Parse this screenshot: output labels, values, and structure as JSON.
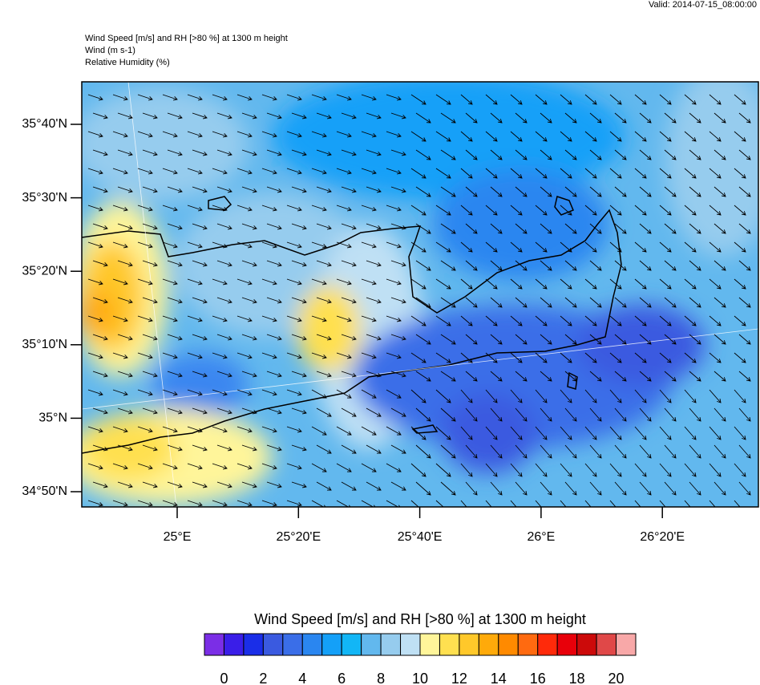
{
  "valid": "Valid: 2014-07-15_08:00:00",
  "header": [
    "Wind Speed [m/s] and RH [>80 %] at 1300 m height",
    "Wind   (m s-1)",
    "Relative Humidity   (%)"
  ],
  "lat_labels": [
    "35°40'N",
    "35°30'N",
    "35°20'N",
    "35°10'N",
    "35°N",
    "34°50'N"
  ],
  "lon_labels": [
    "25°E",
    "25°20'E",
    "25°40'E",
    "26°E",
    "26°20'E"
  ],
  "colorbar": {
    "title": "Wind Speed [m/s] and RH [>80 %] at 1300 m height",
    "colors": [
      "#7b2ee6",
      "#3a1ee8",
      "#1a2ee8",
      "#3a5ae0",
      "#3a6ee8",
      "#2a86f0",
      "#14a0f8",
      "#12b6f6",
      "#62b8ee",
      "#96ccee",
      "#bfe0f4",
      "#fff59a",
      "#ffe050",
      "#ffc82a",
      "#ffaa0a",
      "#ff8a00",
      "#ff6a10",
      "#ff2a0a",
      "#e8000a",
      "#cc0a0a",
      "#e04848",
      "#f8a8a8"
    ],
    "labels": [
      0,
      2,
      4,
      6,
      8,
      10,
      12,
      14,
      16,
      18,
      20
    ]
  }
}
